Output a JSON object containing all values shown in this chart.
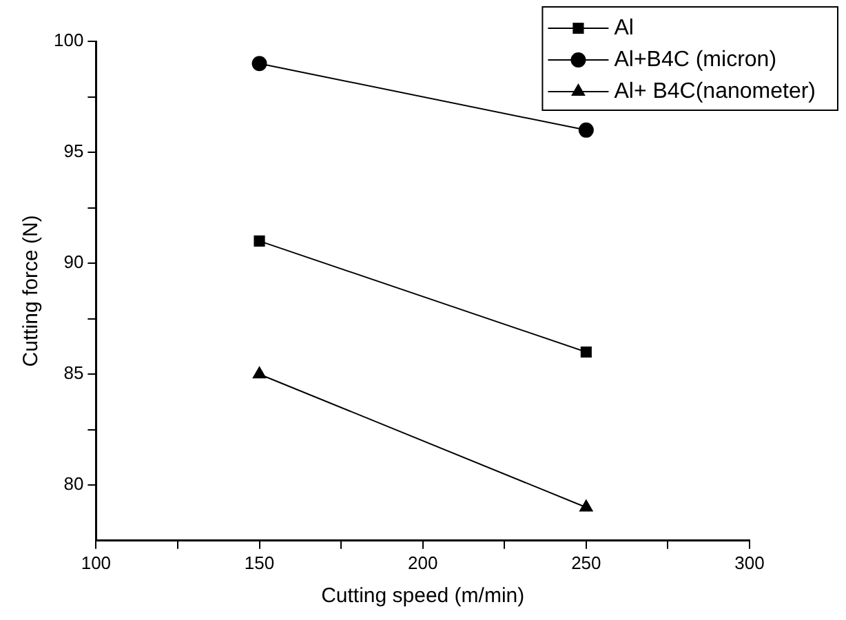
{
  "chart_data": {
    "type": "line",
    "xlabel": "Cutting speed (m/min)",
    "ylabel": "Cutting force (N)",
    "x": [
      150,
      250
    ],
    "series": [
      {
        "name": "Al",
        "color": "#000000",
        "values": [
          91,
          86
        ],
        "marker": "square"
      },
      {
        "name": "Al+B4C (micron)",
        "color": "#000000",
        "values": [
          99,
          96
        ],
        "marker": "circle"
      },
      {
        "name": "Al+ B4C(nanometer)",
        "color": "#000000",
        "values": [
          85,
          79
        ],
        "marker": "triangle"
      }
    ],
    "xlim": [
      100,
      300
    ],
    "ylim": [
      77.5,
      100
    ],
    "xticks": [
      100,
      {
        "value": 125,
        "label": null
      },
      150,
      {
        "value": 175,
        "label": null
      },
      200,
      {
        "value": 225,
        "label": null
      },
      250,
      {
        "value": 275,
        "label": null
      },
      300
    ],
    "yticks": [
      80,
      {
        "value": 82.5,
        "label": null
      },
      85,
      {
        "value": 87.5,
        "label": null
      },
      90,
      {
        "value": 92.5,
        "label": null
      },
      95,
      {
        "value": 97.5,
        "label": null
      },
      100
    ],
    "grid": false,
    "legend": "top right",
    "line_style": "solid"
  }
}
